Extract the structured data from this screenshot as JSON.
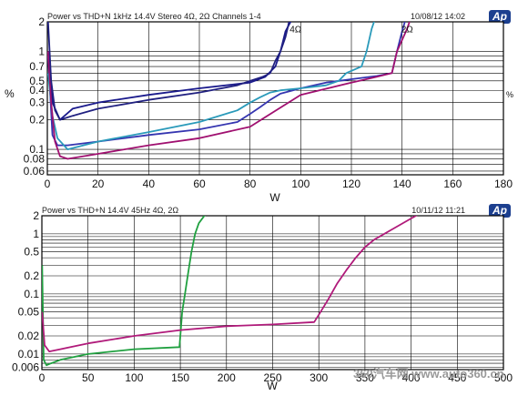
{
  "chart_data": [
    {
      "type": "line",
      "title": "Power vs THD+N 1kHz 14.4V Stereo 4Ω, 2Ω Channels 1-4",
      "date": "10/08/12 14:02",
      "logo": "Ap",
      "xlabel": "W",
      "ylabel": "%",
      "yscale": "log",
      "xlim": [
        0,
        180
      ],
      "ylim": [
        0.055,
        2
      ],
      "x_ticks": [
        0,
        20,
        40,
        60,
        80,
        100,
        120,
        140,
        160,
        180
      ],
      "y_ticks": [
        2,
        1,
        0.7,
        0.5,
        0.4,
        0.3,
        0.2,
        0.1,
        0.08,
        0.06
      ],
      "y_tick_labels": [
        "2",
        "1",
        "0.7",
        "0.5",
        "0.4",
        "0.3",
        "0.2",
        "0.1",
        "0.08",
        "0.06"
      ],
      "annotations": [
        {
          "text": "4Ω",
          "x": 98,
          "y": 1.7
        },
        {
          "text": "2Ω",
          "x": 142,
          "y": 1.7
        }
      ],
      "series": [
        {
          "color": "#1a1a8c",
          "x": [
            0.3,
            2,
            5,
            10,
            20,
            40,
            60,
            80,
            86,
            90,
            92,
            94,
            96,
            98
          ],
          "y": [
            1.0,
            0.3,
            0.2,
            0.26,
            0.3,
            0.36,
            0.42,
            0.48,
            0.55,
            0.7,
            1.0,
            1.6,
            2.0,
            2.4
          ]
        },
        {
          "color": "#3535b0",
          "x": [
            0.3,
            2,
            4,
            8,
            20,
            40,
            60,
            75,
            80,
            84,
            88,
            92,
            100,
            110,
            120,
            130,
            136,
            138,
            140,
            142
          ],
          "y": [
            0.9,
            0.14,
            0.11,
            0.11,
            0.12,
            0.14,
            0.16,
            0.19,
            0.23,
            0.27,
            0.32,
            0.37,
            0.42,
            0.48,
            0.52,
            0.56,
            0.6,
            1.0,
            1.6,
            2.4
          ]
        },
        {
          "color": "#2a9aba",
          "x": [
            0.3,
            2,
            4,
            8,
            20,
            40,
            60,
            75,
            80,
            84,
            88,
            92,
            100,
            110,
            115,
            118,
            124,
            126,
            128,
            130
          ],
          "y": [
            0.6,
            0.22,
            0.13,
            0.1,
            0.12,
            0.15,
            0.19,
            0.25,
            0.3,
            0.34,
            0.38,
            0.4,
            0.42,
            0.45,
            0.5,
            0.6,
            0.7,
            1.0,
            1.7,
            2.4
          ]
        },
        {
          "color": "#a01070",
          "x": [
            0.3,
            1.5,
            3,
            5,
            8,
            20,
            40,
            60,
            80,
            100,
            120,
            130,
            136,
            138,
            142,
            144
          ],
          "y": [
            1.0,
            0.3,
            0.12,
            0.085,
            0.08,
            0.09,
            0.11,
            0.13,
            0.17,
            0.36,
            0.48,
            0.55,
            0.6,
            1.0,
            1.7,
            2.4
          ]
        },
        {
          "color": "#202080",
          "x": [
            0.3,
            1.5,
            3,
            5,
            10,
            20,
            40,
            60,
            75,
            80,
            85,
            88,
            90,
            92,
            94,
            95,
            96
          ],
          "y": [
            2.0,
            0.5,
            0.25,
            0.2,
            0.22,
            0.26,
            0.32,
            0.38,
            0.45,
            0.5,
            0.55,
            0.6,
            0.8,
            1.0,
            1.4,
            1.8,
            2.4
          ]
        }
      ]
    },
    {
      "type": "line",
      "title": "Power vs THD+N 14.4V 45Hz 4Ω, 2Ω",
      "date": "10/11/12 11:21",
      "logo": "Ap",
      "xlabel": "W",
      "yscale": "log",
      "xlim": [
        0,
        500
      ],
      "ylim": [
        0.0055,
        2
      ],
      "x_ticks": [
        0,
        50,
        100,
        150,
        200,
        250,
        300,
        350,
        400,
        450,
        500
      ],
      "y_ticks": [
        2,
        1,
        0.5,
        0.2,
        0.1,
        0.05,
        0.02,
        0.01,
        0.006
      ],
      "y_tick_labels": [
        "2",
        "1",
        "0.5",
        "0.2",
        "0.1",
        "0.05",
        "0.02",
        "0.01",
        "0.006"
      ],
      "series": [
        {
          "color": "#20a040",
          "x": [
            0.3,
            2,
            5,
            10,
            20,
            50,
            100,
            149,
            150,
            152,
            155,
            158,
            162,
            166,
            170,
            176,
            182
          ],
          "y": [
            0.3,
            0.008,
            0.0065,
            0.007,
            0.008,
            0.01,
            0.012,
            0.013,
            0.02,
            0.05,
            0.1,
            0.2,
            0.5,
            1.0,
            1.5,
            2.0,
            2.6
          ]
        },
        {
          "color": "#b01a7a",
          "x": [
            0.3,
            3,
            8,
            20,
            50,
            100,
            150,
            200,
            250,
            295,
            300,
            310,
            320,
            330,
            340,
            350,
            360,
            380,
            400,
            410
          ],
          "y": [
            0.05,
            0.014,
            0.011,
            0.012,
            0.015,
            0.02,
            0.025,
            0.029,
            0.031,
            0.034,
            0.045,
            0.08,
            0.15,
            0.25,
            0.4,
            0.6,
            0.8,
            1.2,
            1.8,
            2.2
          ]
        }
      ]
    }
  ],
  "watermark": "360汽车网 www.auto360.cn"
}
